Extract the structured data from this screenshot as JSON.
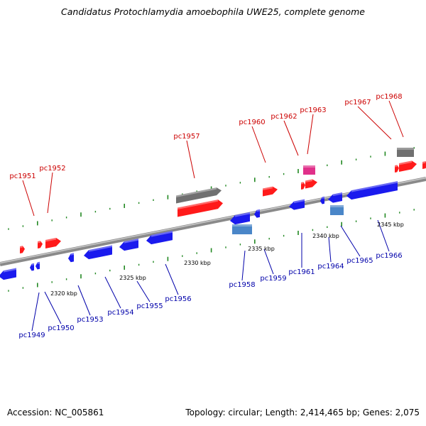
{
  "title": "Candidatus Protochlamydia amoebophila UWE25, complete genome",
  "footer": {
    "accession": "Accession: NC_005861",
    "summary": "Topology: circular; Length: 2,414,465 bp; Genes: 2,075"
  },
  "colors": {
    "forward_label": "#cc0000",
    "reverse_label": "#0000aa",
    "forward_gene": "#ff1a1a",
    "reverse_gene": "#1a1aee",
    "rna_gene": "#707070",
    "pseudo_gene": "#e0308a",
    "other_gene": "#4a86c8",
    "backbone": "#8c8c8c",
    "tick_mark": "#228822"
  },
  "scale": {
    "unit": "kbp",
    "ticks": [
      "2320 kbp",
      "2325 kbp",
      "2330 kbp",
      "2335 kbp",
      "2340 kbp",
      "2345 kbp"
    ]
  },
  "genes_forward": [
    "pc1951",
    "pc1952",
    "pc1957",
    "pc1960",
    "pc1962",
    "pc1963",
    "pc1967",
    "pc1968"
  ],
  "genes_reverse": [
    "pc1949",
    "pc1950",
    "pc1953",
    "pc1954",
    "pc1955",
    "pc1956",
    "pc1958",
    "pc1959",
    "pc1961",
    "pc1964",
    "pc1965",
    "pc1966"
  ]
}
